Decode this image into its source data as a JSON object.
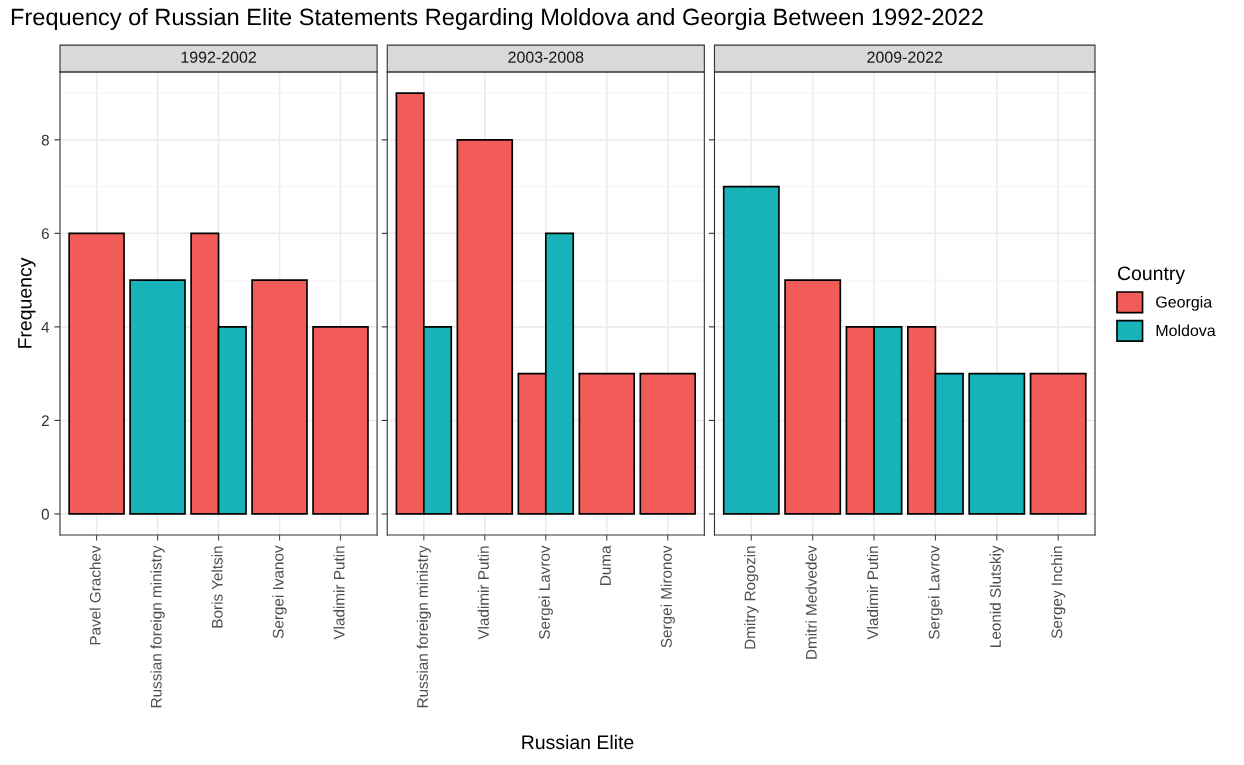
{
  "chart_data": [
    {
      "type": "bar",
      "title": "Frequency of Russian Elite Statements Regarding Moldova and Georgia Between 1992-2022",
      "subtitle": "1992-2002",
      "ylabel": "Frequency",
      "categories": [
        "Pavel Grachev",
        "Russian foreign ministry",
        "Boris Yeltsin",
        "Sergei Ivanov",
        "Vladimir Putin"
      ],
      "series": [
        {
          "color": "#f25c58",
          "values": [
            6,
            null,
            6,
            5,
            4
          ]
        },
        {
          "color": "#17b3b8",
          "values": [
            null,
            5,
            4,
            null,
            null
          ]
        }
      ],
      "ylim": [
        -0.45,
        9.45
      ],
      "yticks": [
        0,
        2,
        4,
        6,
        8
      ],
      "grid": true
    },
    {
      "type": "bar",
      "subtitle": "2003-2008",
      "xlabel": "Russian Elite",
      "categories": [
        "Russian foreign ministry",
        "Vladimir Putin",
        "Sergei Lavrov",
        "Duma",
        "Sergei Mironov"
      ],
      "series": [
        {
          "color": "#f25c58",
          "values": [
            9,
            8,
            3,
            3,
            3
          ]
        },
        {
          "color": "#17b3b8",
          "values": [
            4,
            null,
            6,
            null,
            null
          ]
        }
      ],
      "ylim": [
        -0.45,
        9.45
      ],
      "yticks": [
        0,
        2,
        4,
        6,
        8
      ],
      "grid": true,
      "tick_labels": "x"
    },
    {
      "type": "bar",
      "subtitle": "2009-2022",
      "categories": [
        "Dmitry Rogozin",
        "Dmitri Medvedev",
        "Vladimir Putin",
        "Sergei Lavrov",
        "Leonid Slutskiy",
        "Sergey Inchin"
      ],
      "series": [
        {
          "name": "Georgia",
          "color": "#f25c58",
          "values": [
            null,
            5,
            4,
            4,
            null,
            3
          ]
        },
        {
          "name": "Moldova",
          "color": "#17b3b8",
          "values": [
            7,
            null,
            4,
            3,
            3,
            null
          ]
        }
      ],
      "ylim": [
        -0.45,
        9.45
      ],
      "yticks": [
        0,
        2,
        4,
        6,
        8
      ],
      "grid": true,
      "tick_labels": "x",
      "legend": "right",
      "legend_title": "Country"
    }
  ]
}
